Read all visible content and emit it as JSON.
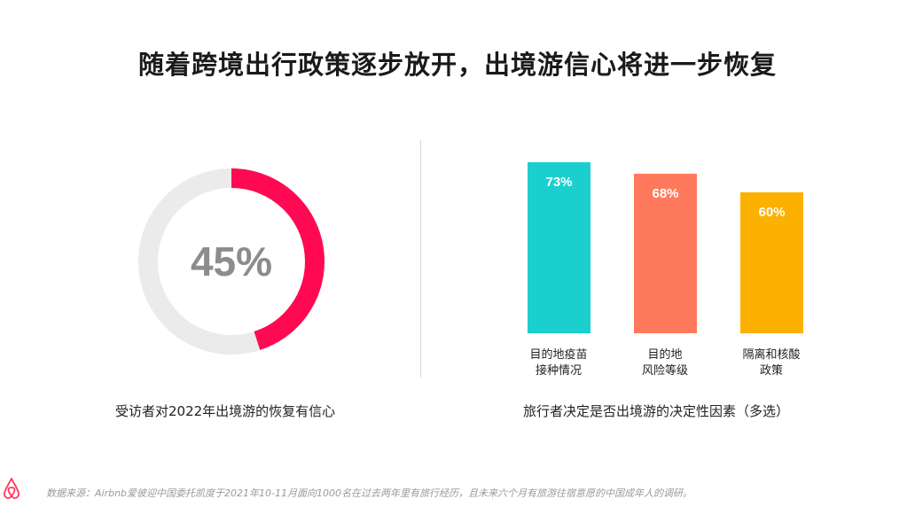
{
  "title": "随着跨境出行政策逐步放开，出境游信心将进一步恢复",
  "left_caption": "受访者对2022年出境游的恢复有信心",
  "right_caption": "旅行者决定是否出境游的决定性因素（多选）",
  "footer": "数据来源：Airbnb爱彼迎中国委托凯度于2021年10-11月面向1000名在过去两年里有旅行经历，且未来六个月有旅游往宿意愿的中国成年人的调研。",
  "colors": {
    "donut_fill": "#ff0a52",
    "donut_track": "#ebebeb",
    "logo": "#ff385c"
  },
  "chart_data": [
    {
      "type": "pie",
      "value": 45,
      "value_label": "45%",
      "max": 100
    },
    {
      "type": "bar",
      "categories": [
        "目的地疫苗\n接种情况",
        "目的地\n风险等级",
        "隔离和核酸\n政策"
      ],
      "values": [
        73,
        68,
        60
      ],
      "value_labels": [
        "73%",
        "68%",
        "60%"
      ],
      "colors": [
        "#1ccfcf",
        "#ff7a5c",
        "#fcb100"
      ],
      "ylim": [
        0,
        80
      ]
    }
  ]
}
